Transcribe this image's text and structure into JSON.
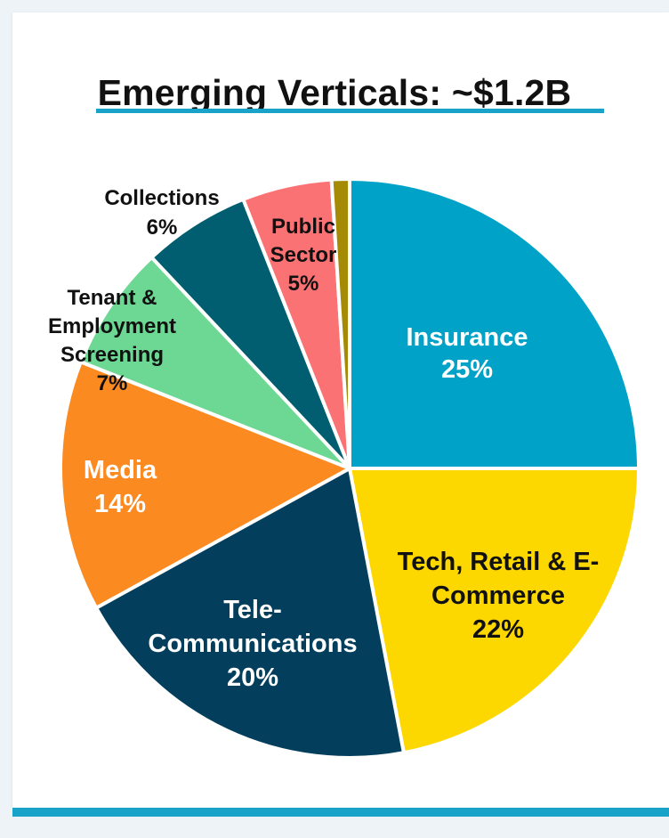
{
  "title": "Emerging Verticals: ~$1.2B",
  "colors": {
    "accent": "#1aa3c9",
    "background": "#eef3f8"
  },
  "chart_data": {
    "type": "pie",
    "title": "Emerging Verticals: ~$1.2B",
    "slices": [
      {
        "label": "Insurance",
        "lines": [
          "Insurance",
          "25%"
        ],
        "value": 25,
        "color": "#00a3c7",
        "text_color": "#ffffff"
      },
      {
        "label": "Tech, Retail & E-Commerce",
        "lines": [
          "Tech, Retail & E-",
          "Commerce",
          "22%"
        ],
        "value": 22,
        "color": "#fcd800",
        "text_color": "#111111"
      },
      {
        "label": "Tele-Communications",
        "lines": [
          "Tele-",
          "Communications",
          "20%"
        ],
        "value": 20,
        "color": "#033f5c",
        "text_color": "#ffffff"
      },
      {
        "label": "Media",
        "lines": [
          "Media",
          "14%"
        ],
        "value": 14,
        "color": "#fb8a20",
        "text_color": "#ffffff"
      },
      {
        "label": "Tenant & Employment Screening",
        "lines": [
          "Tenant &",
          "Employment",
          "Screening",
          "7%"
        ],
        "value": 7,
        "color": "#6cd894",
        "text_color": "#111111"
      },
      {
        "label": "Collections",
        "lines": [
          "Collections",
          "6%"
        ],
        "value": 6,
        "color": "#015e70",
        "text_color": "#111111"
      },
      {
        "label": "Public Sector",
        "lines": [
          "Public",
          "Sector",
          "5%"
        ],
        "value": 5,
        "color": "#fb7274",
        "text_color": "#111111"
      },
      {
        "label": "",
        "lines": [],
        "value": 1,
        "color": "#a58a05",
        "text_color": "#111111"
      }
    ]
  }
}
